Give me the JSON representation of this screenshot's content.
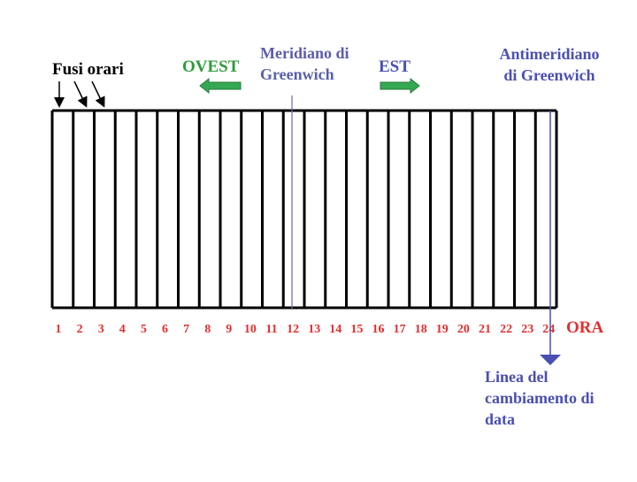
{
  "labels": {
    "time_zones": "Fusi orari",
    "west": "OVEST",
    "meridian": [
      "Meridiano di",
      "Greenwich"
    ],
    "east": "EST",
    "antimeridian": [
      "Antimeridiano",
      "di Greenwich"
    ],
    "hour": "ORA",
    "date_line": [
      "Linea del",
      "cambiamento di",
      "data"
    ]
  },
  "zones": [
    1,
    2,
    3,
    4,
    5,
    6,
    7,
    8,
    9,
    10,
    11,
    12,
    13,
    14,
    15,
    16,
    17,
    18,
    19,
    20,
    21,
    22,
    23,
    24
  ]
}
